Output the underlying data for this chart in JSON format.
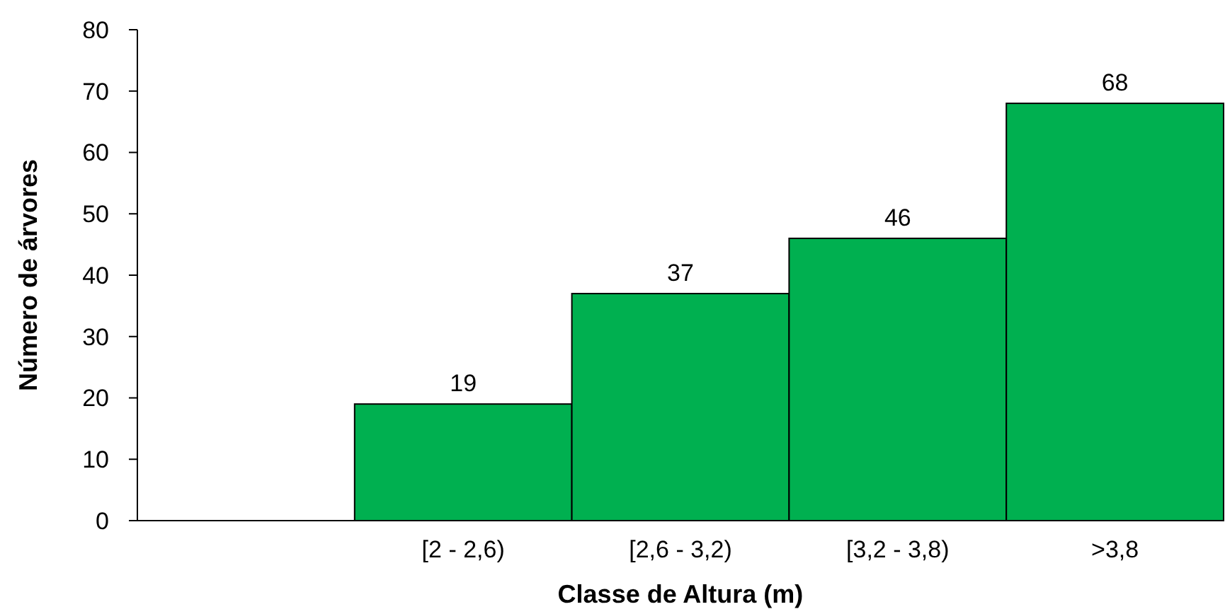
{
  "chart_data": {
    "type": "bar",
    "xlabel": "Classe de Altura (m)",
    "ylabel": "Número de árvores",
    "categories": [
      null,
      "[2 - 2,6)",
      "[2,6 - 3,2)",
      "[3,2 - 3,8)",
      ">3,8"
    ],
    "values": [
      null,
      19,
      37,
      46,
      68
    ],
    "color": "#00b050",
    "ylim": [
      0,
      80
    ],
    "yticks": [
      0,
      10,
      20,
      30,
      40,
      50,
      60,
      70,
      80
    ],
    "data_labels": true
  }
}
